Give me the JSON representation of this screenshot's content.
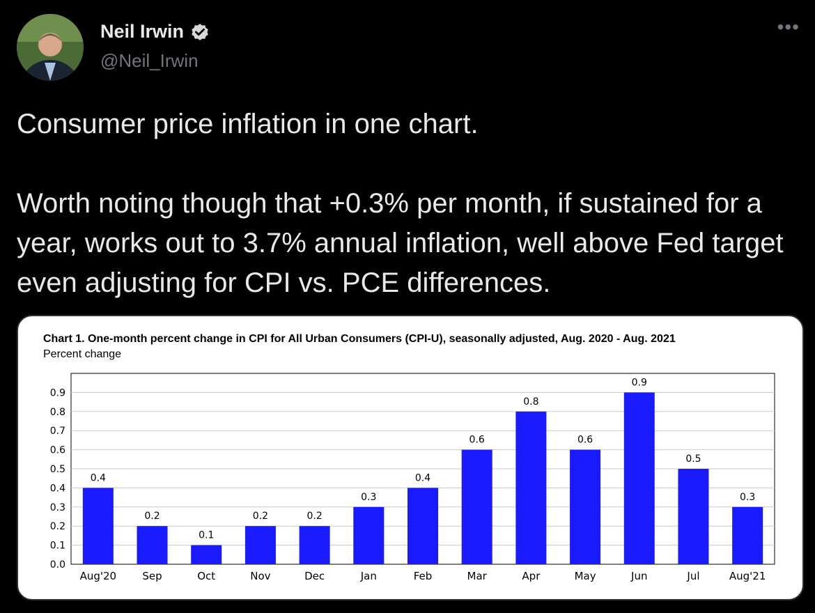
{
  "author": {
    "name": "Neil Irwin",
    "handle": "@Neil_Irwin",
    "verified": true,
    "more_icon": "ellipsis-icon"
  },
  "tweet": {
    "line1": "Consumer price inflation in one chart.",
    "line2": "Worth noting though that +0.3% per month, if sustained for a year, works out to 3.7% annual inflation, well above Fed target even adjusting for CPI vs. PCE differences."
  },
  "colors": {
    "background": "#000000",
    "text": "#e7e9ea",
    "muted": "#71767b",
    "verified": "#d9d9d9",
    "bar": "#1a1aff"
  },
  "chart_data": {
    "type": "bar",
    "title": "Chart 1. One-month percent change in CPI for All Urban Consumers (CPI-U), seasonally adjusted, Aug. 2020 - Aug. 2021",
    "ylabel": "Percent change",
    "xlabel": "",
    "categories": [
      "Aug'20",
      "Sep",
      "Oct",
      "Nov",
      "Dec",
      "Jan",
      "Feb",
      "Mar",
      "Apr",
      "May",
      "Jun",
      "Jul",
      "Aug'21"
    ],
    "values": [
      0.4,
      0.2,
      0.1,
      0.2,
      0.2,
      0.3,
      0.4,
      0.6,
      0.8,
      0.6,
      0.9,
      0.5,
      0.3
    ],
    "ylim": [
      0,
      1.0
    ],
    "yticks": [
      "0.0",
      "0.1",
      "0.2",
      "0.3",
      "0.4",
      "0.5",
      "0.6",
      "0.7",
      "0.8",
      "0.9"
    ],
    "grid": true,
    "data_labels": true
  }
}
